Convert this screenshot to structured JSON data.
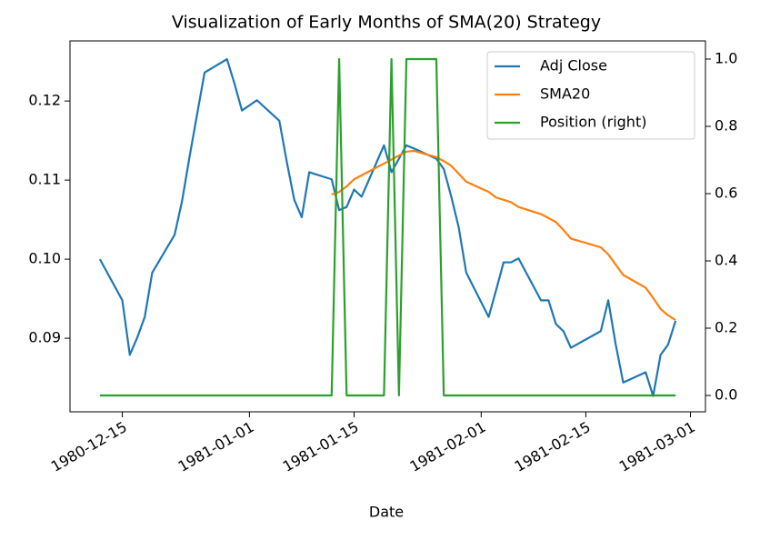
{
  "chart_data": {
    "type": "line",
    "title": "Visualization of Early Months of SMA(20) Strategy",
    "xlabel": "Date",
    "x": [
      "1980-12-12",
      "1980-12-15",
      "1980-12-16",
      "1980-12-17",
      "1980-12-18",
      "1980-12-19",
      "1980-12-22",
      "1980-12-23",
      "1980-12-24",
      "1980-12-26",
      "1980-12-29",
      "1980-12-30",
      "1980-12-31",
      "1981-01-02",
      "1981-01-05",
      "1981-01-06",
      "1981-01-07",
      "1981-01-08",
      "1981-01-09",
      "1981-01-12",
      "1981-01-13",
      "1981-01-14",
      "1981-01-15",
      "1981-01-16",
      "1981-01-19",
      "1981-01-20",
      "1981-01-21",
      "1981-01-22",
      "1981-01-23",
      "1981-01-26",
      "1981-01-27",
      "1981-01-28",
      "1981-01-29",
      "1981-01-30",
      "1981-02-02",
      "1981-02-03",
      "1981-02-04",
      "1981-02-05",
      "1981-02-06",
      "1981-02-09",
      "1981-02-10",
      "1981-02-11",
      "1981-02-12",
      "1981-02-13",
      "1981-02-17",
      "1981-02-18",
      "1981-02-19",
      "1981-02-20",
      "1981-02-23",
      "1981-02-24",
      "1981-02-25",
      "1981-02-26",
      "1981-02-27"
    ],
    "series": [
      {
        "name": "Adj Close",
        "color": "#1f77b4",
        "values": [
          0.1,
          0.0948,
          0.0879,
          0.0901,
          0.0927,
          0.0983,
          0.1031,
          0.1074,
          0.113,
          0.1236,
          0.1253,
          0.1222,
          0.1188,
          0.1201,
          0.1175,
          0.1123,
          0.1075,
          0.1053,
          0.111,
          0.1101,
          0.1062,
          0.1066,
          0.1088,
          0.1079,
          0.1144,
          0.111,
          0.1127,
          0.1144,
          0.114,
          0.1127,
          0.1114,
          0.1079,
          0.104,
          0.0983,
          0.0927,
          0.0961,
          0.0996,
          0.0996,
          0.1001,
          0.0948,
          0.0948,
          0.0918,
          0.0909,
          0.0888,
          0.0909,
          0.0948,
          0.0892,
          0.0844,
          0.0857,
          0.0827,
          0.0879,
          0.0892,
          0.0922
        ]
      },
      {
        "name": "SMA20",
        "color": "#ff7f0e",
        "values": [
          null,
          null,
          null,
          null,
          null,
          null,
          null,
          null,
          null,
          null,
          null,
          null,
          null,
          null,
          null,
          null,
          null,
          null,
          null,
          0.1082,
          0.1085,
          0.1092,
          0.1101,
          0.1106,
          0.1121,
          0.1126,
          0.1131,
          0.1136,
          0.1137,
          0.1129,
          0.1124,
          0.1118,
          0.1108,
          0.1098,
          0.1085,
          0.1078,
          0.1075,
          0.1072,
          0.1066,
          0.1057,
          0.1052,
          0.1047,
          0.1037,
          0.1026,
          0.1015,
          0.1006,
          0.0993,
          0.098,
          0.0964,
          0.0951,
          0.0937,
          0.0929,
          0.0923
        ]
      },
      {
        "name": "Position (right)",
        "color": "#2ca02c",
        "axis": "y2",
        "values": [
          0,
          0,
          0,
          0,
          0,
          0,
          0,
          0,
          0,
          0,
          0,
          0,
          0,
          0,
          0,
          0,
          0,
          0,
          0,
          0,
          1,
          0,
          0,
          0,
          0,
          1,
          0,
          1,
          1,
          1,
          0,
          0,
          0,
          0,
          0,
          0,
          0,
          0,
          0,
          0,
          0,
          0,
          0,
          0,
          0,
          0,
          0,
          0,
          0,
          0,
          0,
          0,
          0
        ]
      }
    ],
    "xlim": [
      "1980-12-08",
      "1981-03-03"
    ],
    "xticks": [
      "1980-12-15",
      "1981-01-01",
      "1981-01-15",
      "1981-02-01",
      "1981-02-15",
      "1981-03-01"
    ],
    "ylim": [
      0.0807,
      0.1276
    ],
    "yticks": [
      0.09,
      {
        "value": 0.1,
        "label": "0.10"
      },
      0.11,
      0.12
    ],
    "y2lim": [
      -0.0486,
      1.054
    ],
    "y2ticks": [
      {
        "value": 0,
        "label": "0.0"
      },
      0.2,
      0.4,
      0.6,
      0.8,
      {
        "value": 1,
        "label": "1.0"
      }
    ],
    "legend": "upper right"
  }
}
